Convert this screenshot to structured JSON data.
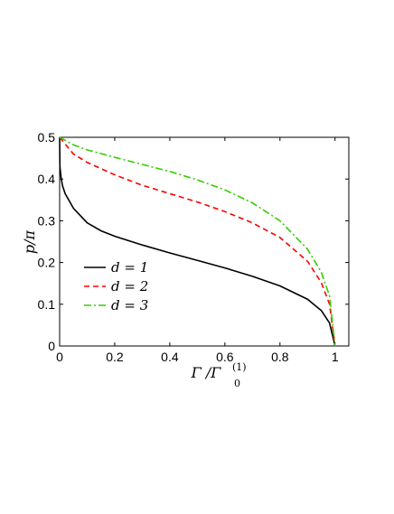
{
  "chart_data": {
    "type": "line",
    "xlabel": "Γ /Γ",
    "xlabel_sub": "0",
    "xlabel_sup": "(1)",
    "ylabel": "p/π",
    "xlim": [
      0,
      1.05
    ],
    "ylim": [
      0,
      0.5
    ],
    "grid": false,
    "legend_position": "bottom-left",
    "x_ticks": [
      0,
      0.2,
      0.4,
      0.6,
      0.8,
      1
    ],
    "x_tick_labels": [
      "0",
      "0.2",
      "0.4",
      "0.6",
      "0.8",
      "1"
    ],
    "y_ticks": [
      0,
      0.1,
      0.2,
      0.3,
      0.4,
      0.5
    ],
    "y_tick_labels": [
      "0",
      "0.1",
      "0.2",
      "0.3",
      "0.4",
      "0.5"
    ],
    "series": [
      {
        "name": "d = 1",
        "color": "#000000",
        "dash": "solid",
        "x": [
          0,
          0.001,
          0.005,
          0.01,
          0.02,
          0.05,
          0.1,
          0.15,
          0.2,
          0.3,
          0.4,
          0.5,
          0.6,
          0.7,
          0.8,
          0.9,
          0.95,
          0.98,
          1.0
        ],
        "y": [
          0.5,
          0.43,
          0.405,
          0.385,
          0.365,
          0.33,
          0.295,
          0.276,
          0.263,
          0.242,
          0.223,
          0.205,
          0.187,
          0.167,
          0.144,
          0.112,
          0.085,
          0.055,
          0.0
        ]
      },
      {
        "name": "d = 2",
        "color": "#ff0000",
        "dash": "dashed",
        "x": [
          0,
          0.05,
          0.1,
          0.2,
          0.3,
          0.4,
          0.5,
          0.6,
          0.7,
          0.8,
          0.9,
          0.95,
          0.98,
          1.0
        ],
        "y": [
          0.5,
          0.46,
          0.44,
          0.41,
          0.385,
          0.365,
          0.345,
          0.322,
          0.295,
          0.26,
          0.203,
          0.152,
          0.1,
          0.0
        ]
      },
      {
        "name": "d = 3",
        "color": "#33cc00",
        "dash": "dashdot",
        "x": [
          0,
          0.05,
          0.1,
          0.2,
          0.3,
          0.4,
          0.5,
          0.6,
          0.7,
          0.8,
          0.9,
          0.95,
          0.98,
          1.0
        ],
        "y": [
          0.5,
          0.482,
          0.47,
          0.452,
          0.435,
          0.418,
          0.398,
          0.374,
          0.343,
          0.3,
          0.232,
          0.177,
          0.12,
          0.0
        ]
      }
    ]
  }
}
